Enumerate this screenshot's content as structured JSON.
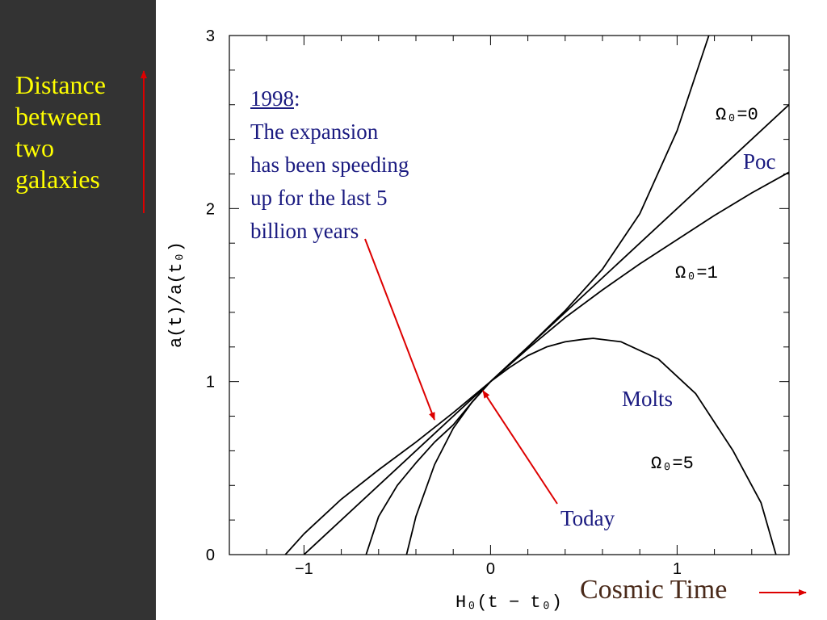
{
  "slide": {
    "side_label_lines": [
      "Distance",
      "between",
      "two",
      "galaxies"
    ],
    "cosmic_time_label": "Cosmic Time",
    "annotation": {
      "year": "1998",
      "colon": ":",
      "lines": [
        "The expansion",
        "has been speeding",
        "up for the last 5",
        "billion years"
      ]
    },
    "today_label": "Today",
    "poc_label": "Poc",
    "molts_label": "Molts",
    "colors": {
      "panel": "#333333",
      "side_text": "#ffff00",
      "annotation_text": "#1a1a80",
      "arrows": "#dd0000",
      "curves": "#000000"
    }
  },
  "chart_data": {
    "type": "line",
    "xlabel": "H₀(t − t₀)",
    "ylabel": "a(t)/a(t₀)",
    "xlim": [
      -1.4,
      1.6
    ],
    "ylim": [
      0,
      3
    ],
    "xticks": [
      -1,
      0,
      1
    ],
    "xtick_labels": [
      "−1",
      "0",
      "1"
    ],
    "yticks": [
      0,
      1,
      2,
      3
    ],
    "ytick_labels": [
      "0",
      "1",
      "2",
      "3"
    ],
    "grid": false,
    "series": [
      {
        "name": "Ω₀=0",
        "x": [
          -1.0,
          0,
          1.6
        ],
        "y": [
          0,
          1,
          2.6
        ]
      },
      {
        "name": "Ω₀=1",
        "x": [
          -0.667,
          -0.6,
          -0.5,
          -0.4,
          -0.3,
          -0.2,
          -0.1,
          0,
          0.2,
          0.4,
          0.6,
          0.8,
          1.0,
          1.2,
          1.4,
          1.6
        ],
        "y": [
          0,
          0.22,
          0.4,
          0.53,
          0.65,
          0.75,
          0.88,
          1.0,
          1.19,
          1.37,
          1.53,
          1.68,
          1.82,
          1.96,
          2.09,
          2.21
        ]
      },
      {
        "name": "Ω₀=5",
        "x": [
          -0.45,
          -0.4,
          -0.3,
          -0.2,
          -0.1,
          0,
          0.1,
          0.2,
          0.3,
          0.4,
          0.5,
          0.55,
          0.7,
          0.9,
          1.1,
          1.3,
          1.45,
          1.53
        ],
        "y": [
          0,
          0.22,
          0.52,
          0.73,
          0.88,
          1.0,
          1.08,
          1.15,
          1.2,
          1.23,
          1.245,
          1.25,
          1.23,
          1.13,
          0.93,
          0.6,
          0.3,
          0
        ]
      },
      {
        "name": "",
        "x": [
          -1.1,
          -1.0,
          -0.8,
          -0.6,
          -0.4,
          -0.2,
          0,
          0.2,
          0.4,
          0.6,
          0.8,
          1.0,
          1.17
        ],
        "y": [
          0,
          0.12,
          0.32,
          0.49,
          0.65,
          0.82,
          1.0,
          1.2,
          1.41,
          1.65,
          1.97,
          2.45,
          3.0
        ]
      }
    ]
  }
}
